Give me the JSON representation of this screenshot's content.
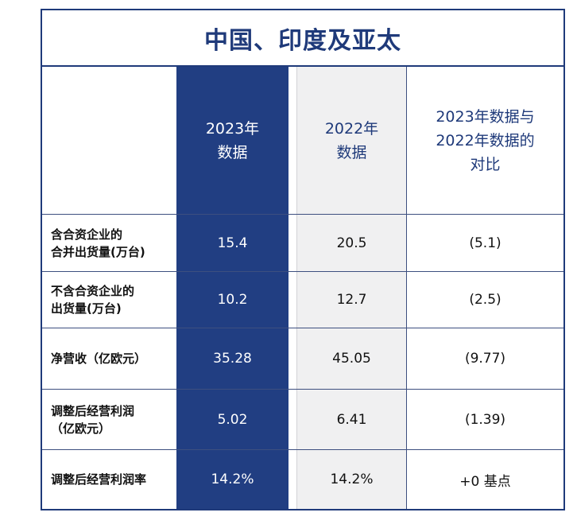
{
  "title": "中国、印度及亚太",
  "columns": {
    "col_2023": "2023年\n数据",
    "col_2022": "2022年\n数据",
    "col_compare": "2023年数据与\n2022年数据的\n对比"
  },
  "rows": [
    {
      "label": "含合资企业的\n合并出货量(万台)",
      "v2023": "15.4",
      "v2022": "20.5",
      "compare": "(5.1)"
    },
    {
      "label": "不含合资企业的\n出货量(万台)",
      "v2023": "10.2",
      "v2022": "12.7",
      "compare": "(2.5)"
    },
    {
      "label": "净营收（亿欧元）",
      "v2023": "35.28",
      "v2022": "45.05",
      "compare": "(9.77)"
    },
    {
      "label": "调整后经营利润\n（亿欧元）",
      "v2023": "5.02",
      "v2022": "6.41",
      "compare": "(1.39)"
    },
    {
      "label": "调整后经营利润率",
      "v2023": "14.2%",
      "v2022": "14.2%",
      "compare": "+0 基点"
    }
  ],
  "colors": {
    "navy": "#213e82",
    "frame": "#1f3a7a",
    "light_gray": "#f0f0f1"
  }
}
